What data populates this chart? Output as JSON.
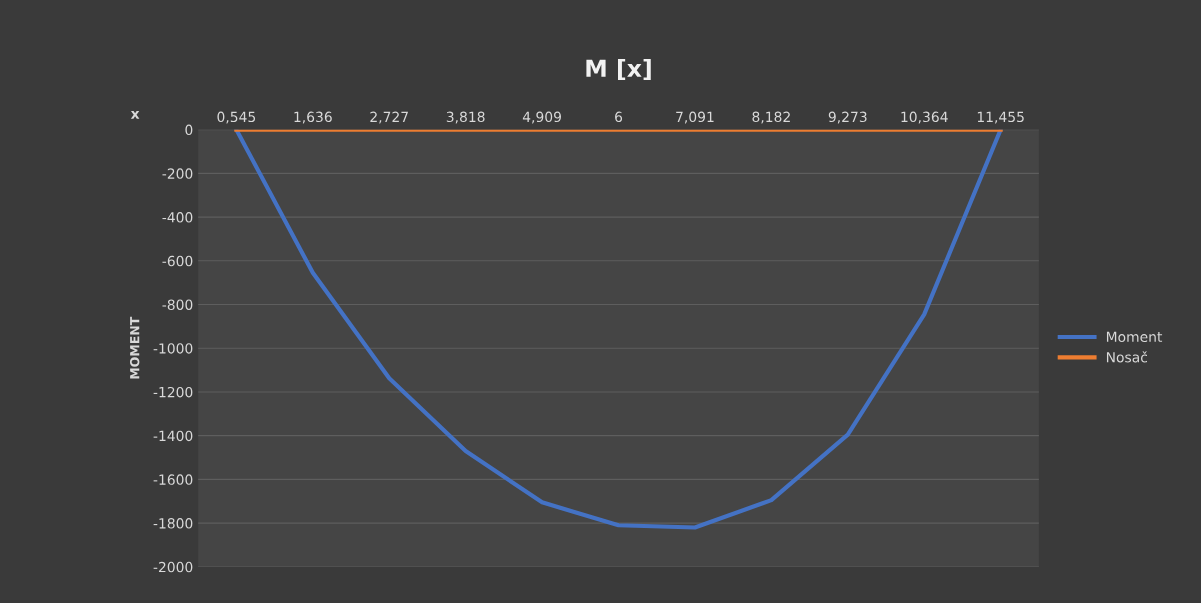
{
  "chart_data": {
    "type": "line",
    "title": "M [x]",
    "xlabel": "x",
    "ylabel": "MOMENT",
    "categories": [
      "0,545",
      "1,636",
      "2,727",
      "3,818",
      "4,909",
      "6",
      "7,091",
      "8,182",
      "9,273",
      "10,364",
      "11,455"
    ],
    "series": [
      {
        "name": "Moment",
        "color": "#4472c4",
        "values": [
          0,
          -655,
          -1137,
          -1470,
          -1705,
          -1810,
          -1820,
          -1695,
          -1395,
          -845,
          0
        ]
      },
      {
        "name": "Nosač",
        "color": "#ed7d31",
        "values": [
          0,
          0,
          0,
          0,
          0,
          0,
          0,
          0,
          0,
          0,
          0
        ]
      }
    ],
    "ylim": [
      -2000,
      0
    ],
    "yticks": [
      0,
      -200,
      -400,
      -600,
      -800,
      -1000,
      -1200,
      -1400,
      -1600,
      -1800,
      -2000
    ],
    "grid": "y",
    "legend": "right",
    "marker": "none",
    "line_style": "solid"
  }
}
